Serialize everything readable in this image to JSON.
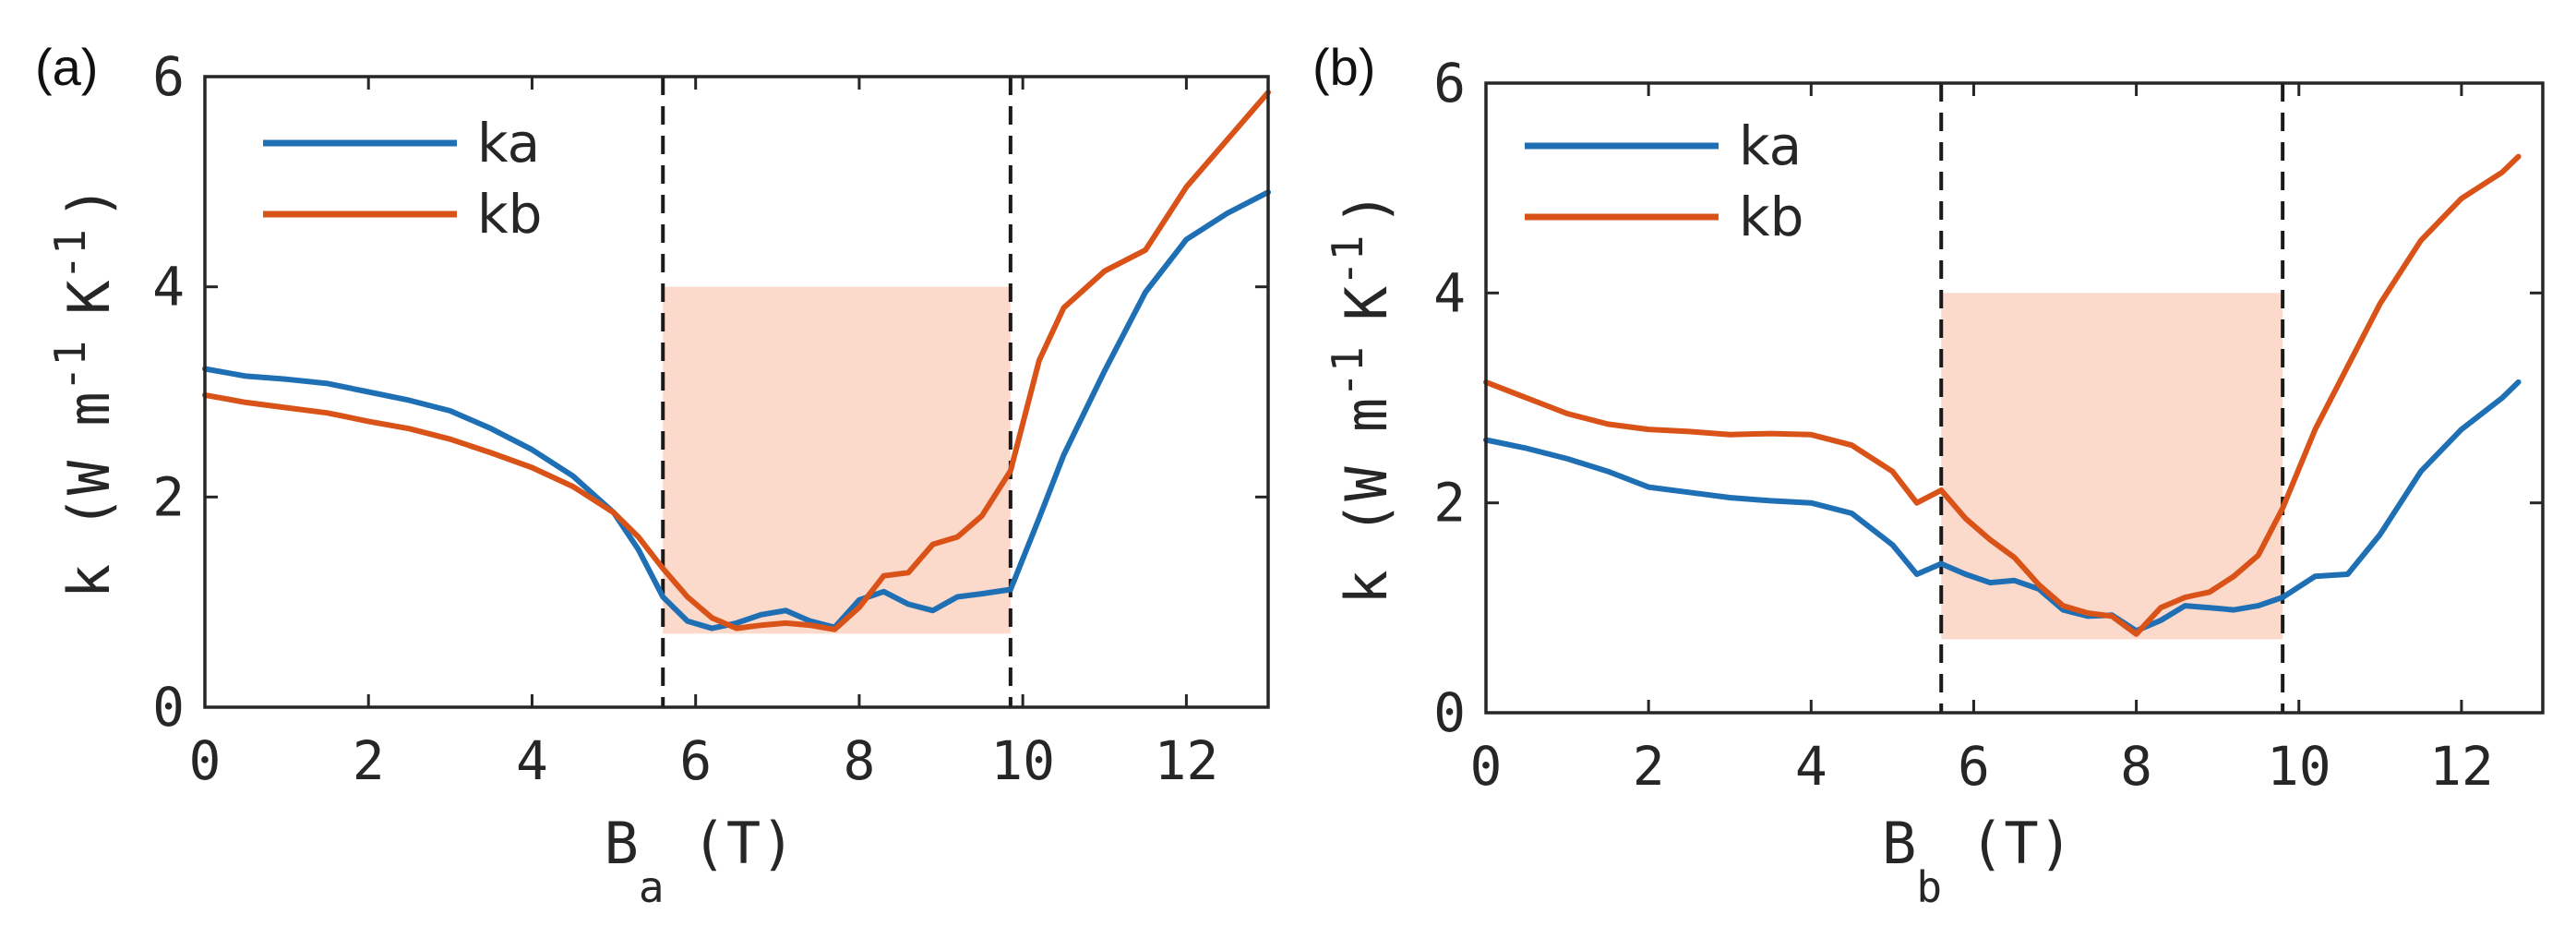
{
  "chart_data": [
    {
      "type": "line",
      "panel_label": "(a)",
      "xlabel": "B",
      "xlabel_sub": "a",
      "xlabel_unit": "(T)",
      "ylabel": "k (W m",
      "ylabel_exp1": "-1",
      "ylabel_mid": "K",
      "ylabel_exp2": "-1",
      "ylabel_close": ")",
      "xlim": [
        0,
        13
      ],
      "ylim": [
        0,
        6
      ],
      "xticks": [
        0,
        2,
        4,
        6,
        8,
        10,
        12
      ],
      "yticks": [
        0,
        2,
        4,
        6
      ],
      "vlines": [
        5.6,
        9.85
      ],
      "shaded_region": {
        "x": [
          5.6,
          9.85
        ],
        "y": [
          0.7,
          4.0
        ],
        "color": "#fbd9cb"
      },
      "legend_position": "top-left",
      "series": [
        {
          "name": "ka",
          "color": "#1f6fb5",
          "x": [
            0,
            0.5,
            1,
            1.5,
            2,
            2.5,
            3,
            3.5,
            4,
            4.5,
            5,
            5.3,
            5.6,
            5.9,
            6.2,
            6.5,
            6.8,
            7.1,
            7.4,
            7.7,
            8.0,
            8.3,
            8.6,
            8.9,
            9.2,
            9.5,
            9.85,
            10.2,
            10.5,
            11.0,
            11.5,
            12.0,
            12.5,
            13.0
          ],
          "values": [
            3.22,
            3.15,
            3.12,
            3.08,
            3.0,
            2.92,
            2.82,
            2.65,
            2.45,
            2.2,
            1.85,
            1.5,
            1.05,
            0.82,
            0.75,
            0.8,
            0.88,
            0.92,
            0.82,
            0.76,
            1.02,
            1.1,
            0.98,
            0.92,
            1.05,
            1.08,
            1.12,
            1.8,
            2.4,
            3.2,
            3.95,
            4.45,
            4.7,
            4.9
          ]
        },
        {
          "name": "kb",
          "color": "#d95319",
          "x": [
            0,
            0.5,
            1,
            1.5,
            2,
            2.5,
            3,
            3.5,
            4,
            4.5,
            5,
            5.3,
            5.6,
            5.9,
            6.2,
            6.5,
            6.8,
            7.1,
            7.4,
            7.7,
            8.0,
            8.3,
            8.6,
            8.9,
            9.2,
            9.5,
            9.85,
            10.2,
            10.5,
            11.0,
            11.5,
            12.0,
            12.5,
            13.0
          ],
          "values": [
            2.97,
            2.9,
            2.85,
            2.8,
            2.72,
            2.65,
            2.55,
            2.42,
            2.28,
            2.1,
            1.85,
            1.62,
            1.32,
            1.05,
            0.85,
            0.75,
            0.78,
            0.8,
            0.78,
            0.74,
            0.95,
            1.25,
            1.28,
            1.55,
            1.62,
            1.82,
            2.25,
            3.3,
            3.8,
            4.15,
            4.35,
            4.95,
            5.4,
            5.85
          ]
        }
      ]
    },
    {
      "type": "line",
      "panel_label": "(b)",
      "xlabel": "B",
      "xlabel_sub": "b",
      "xlabel_unit": "(T)",
      "ylabel": "k (W m",
      "ylabel_exp1": "-1",
      "ylabel_mid": "K",
      "ylabel_exp2": "-1",
      "ylabel_close": ")",
      "xlim": [
        0,
        13
      ],
      "ylim": [
        0,
        6
      ],
      "xticks": [
        0,
        2,
        4,
        6,
        8,
        10,
        12
      ],
      "yticks": [
        0,
        2,
        4,
        6
      ],
      "vlines": [
        5.6,
        9.8
      ],
      "shaded_region": {
        "x": [
          5.6,
          9.8
        ],
        "y": [
          0.7,
          4.0
        ],
        "color": "#fbd9cb"
      },
      "legend_position": "top-left",
      "series": [
        {
          "name": "ka",
          "color": "#1f6fb5",
          "x": [
            0,
            0.5,
            1,
            1.5,
            2,
            2.5,
            3,
            3.5,
            4,
            4.5,
            5,
            5.3,
            5.6,
            5.9,
            6.2,
            6.5,
            6.8,
            7.1,
            7.4,
            7.7,
            8.0,
            8.3,
            8.6,
            8.9,
            9.2,
            9.5,
            9.8,
            10.2,
            10.6,
            11.0,
            11.5,
            12.0,
            12.5,
            12.7
          ],
          "values": [
            2.6,
            2.52,
            2.42,
            2.3,
            2.15,
            2.1,
            2.05,
            2.02,
            2.0,
            1.9,
            1.6,
            1.32,
            1.42,
            1.32,
            1.24,
            1.26,
            1.18,
            0.98,
            0.92,
            0.93,
            0.78,
            0.88,
            1.02,
            1.0,
            0.98,
            1.02,
            1.1,
            1.3,
            1.32,
            1.7,
            2.3,
            2.7,
            3.0,
            3.15
          ]
        },
        {
          "name": "kb",
          "color": "#d95319",
          "x": [
            0,
            0.5,
            1,
            1.5,
            2,
            2.5,
            3,
            3.5,
            4,
            4.5,
            5,
            5.3,
            5.6,
            5.9,
            6.2,
            6.5,
            6.8,
            7.1,
            7.4,
            7.7,
            8.0,
            8.3,
            8.6,
            8.9,
            9.2,
            9.5,
            9.8,
            10.2,
            10.6,
            11.0,
            11.5,
            12.0,
            12.5,
            12.7
          ],
          "values": [
            3.15,
            3.0,
            2.85,
            2.75,
            2.7,
            2.68,
            2.65,
            2.66,
            2.65,
            2.55,
            2.3,
            2.0,
            2.12,
            1.85,
            1.65,
            1.48,
            1.22,
            1.02,
            0.95,
            0.92,
            0.75,
            1.0,
            1.1,
            1.15,
            1.3,
            1.5,
            1.95,
            2.7,
            3.3,
            3.9,
            4.5,
            4.9,
            5.15,
            5.3
          ]
        }
      ]
    }
  ]
}
